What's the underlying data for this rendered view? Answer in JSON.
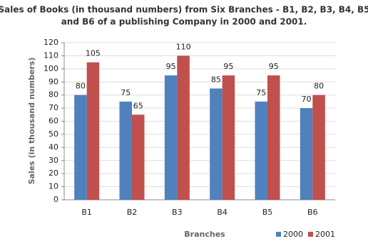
{
  "chart_data": {
    "type": "bar",
    "title": [
      "Sales of Books (in thousand numbers) from Six Branches - B1, B2, B3, B4, B5",
      "and B6 of a publishing Company in 2000 and 2001."
    ],
    "x_label": "Branches",
    "y_label": "Sales (in thousand numbers)",
    "categories": [
      "B1",
      "B2",
      "B3",
      "B4",
      "B5",
      "B6"
    ],
    "series": [
      {
        "name": "2000",
        "color": "#4f81bd",
        "values": [
          80,
          75,
          95,
          85,
          75,
          70
        ]
      },
      {
        "name": "2001",
        "color": "#c0504d",
        "values": [
          105,
          65,
          110,
          95,
          95,
          80
        ]
      }
    ],
    "ylim": [
      0,
      120
    ],
    "yticks": [
      0,
      10,
      20,
      30,
      40,
      50,
      60,
      70,
      80,
      90,
      100,
      110,
      120
    ],
    "grid": true,
    "legend": "bottom-right"
  }
}
